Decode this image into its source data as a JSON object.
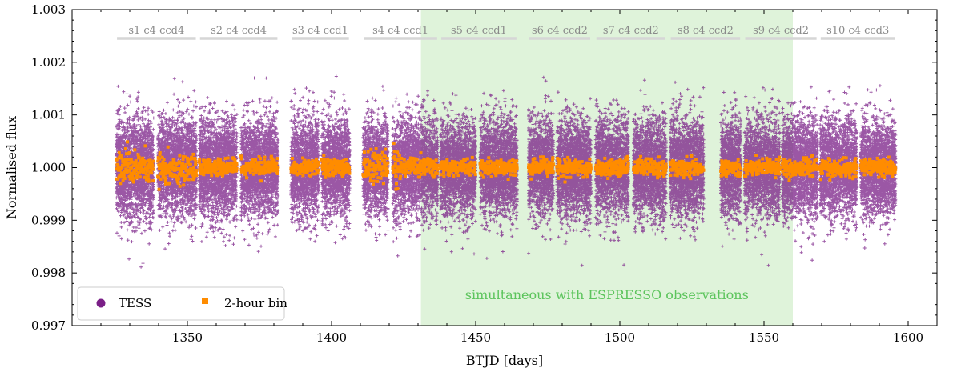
{
  "chart_data": {
    "type": "scatter",
    "title": "",
    "xlabel": "BTJD [days]",
    "ylabel": "Normalised flux",
    "xlim": [
      1310,
      1610
    ],
    "ylim": [
      0.997,
      1.003
    ],
    "xticks": [
      1350,
      1400,
      1450,
      1500,
      1550,
      1600
    ],
    "yticks": [
      0.997,
      0.998,
      0.999,
      1.0,
      1.001,
      1.002,
      1.003
    ],
    "ytick_labels": [
      "0.997",
      "0.998",
      "0.999",
      "1.000",
      "1.001",
      "1.002",
      "1.003"
    ],
    "highlight": {
      "x_start": 1431,
      "x_end": 1560,
      "label": "simultaneous with ESPRESSO observations",
      "color": "#dff3da"
    },
    "sectors": [
      {
        "label": "s1 c4 ccd4",
        "start": 1325.3,
        "end": 1353.2
      },
      {
        "label": "s2 c4 ccd4",
        "start": 1354.1,
        "end": 1381.5
      },
      {
        "label": "s3 c4 ccd1",
        "start": 1385.9,
        "end": 1406.3
      },
      {
        "label": "s4 c4 ccd1",
        "start": 1410.9,
        "end": 1436.9
      },
      {
        "label": "s5 c4 ccd1",
        "start": 1437.8,
        "end": 1464.4
      },
      {
        "label": "s6 c4 ccd2",
        "start": 1468.3,
        "end": 1490.0
      },
      {
        "label": "s7 c4 ccd2",
        "start": 1491.6,
        "end": 1516.1
      },
      {
        "label": "s8 c4 ccd2",
        "start": 1517.4,
        "end": 1542.0
      },
      {
        "label": "s9 c4 ccd2",
        "start": 1543.2,
        "end": 1568.5
      },
      {
        "label": "s10 c4 ccd3",
        "start": 1569.4,
        "end": 1595.7
      }
    ],
    "series": [
      {
        "name": "TESS",
        "marker": "+",
        "color": "#7a1f87",
        "center": 1.0,
        "scatter_sigma": 0.00045,
        "segments": [
          [
            1325.3,
            1338.3
          ],
          [
            1339.7,
            1353.2
          ],
          [
            1354.1,
            1367.2
          ],
          [
            1368.6,
            1381.5
          ],
          [
            1385.9,
            1395.5
          ],
          [
            1396.6,
            1406.3
          ],
          [
            1410.9,
            1419.6
          ],
          [
            1421.2,
            1424.5
          ],
          [
            1424.6,
            1436.9
          ],
          [
            1437.8,
            1450.0
          ],
          [
            1451.5,
            1464.4
          ],
          [
            1468.3,
            1477.0
          ],
          [
            1478.1,
            1490.0
          ],
          [
            1491.6,
            1503.0
          ],
          [
            1504.7,
            1516.1
          ],
          [
            1517.4,
            1529.1
          ],
          [
            1535.0,
            1542.0
          ],
          [
            1543.2,
            1555.5
          ],
          [
            1556.3,
            1568.5
          ],
          [
            1569.4,
            1582.3
          ],
          [
            1583.5,
            1595.7
          ]
        ]
      },
      {
        "name": "2-hour bin",
        "marker": "square",
        "color": "#ff8c00",
        "center": 1.0,
        "scatter_sigma": 8e-05,
        "bin_days": 0.0833
      }
    ],
    "legend": {
      "position": "lower-left",
      "entries": [
        "TESS",
        "2-hour bin"
      ]
    }
  }
}
